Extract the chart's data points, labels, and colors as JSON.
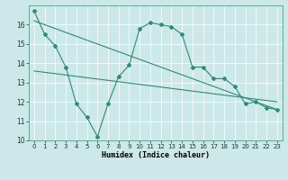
{
  "xlabel": "Humidex (Indice chaleur)",
  "background_color": "#cce8e8",
  "grid_color": "#ffffff",
  "line_color": "#2e8b74",
  "xlim": [
    -0.5,
    23.5
  ],
  "ylim": [
    10,
    17
  ],
  "yticks": [
    10,
    11,
    12,
    13,
    14,
    15,
    16
  ],
  "xticks": [
    0,
    1,
    2,
    3,
    4,
    5,
    6,
    7,
    8,
    9,
    10,
    11,
    12,
    13,
    14,
    15,
    16,
    17,
    18,
    19,
    20,
    21,
    22,
    23
  ],
  "line1_x": [
    0,
    1,
    2,
    3,
    4,
    5,
    6,
    7,
    8,
    9,
    10,
    11,
    12,
    13,
    14,
    15,
    16,
    17,
    18,
    19,
    20,
    21,
    22,
    23
  ],
  "line1_y": [
    16.7,
    15.5,
    14.9,
    13.8,
    11.9,
    11.2,
    10.2,
    11.9,
    13.3,
    13.9,
    15.8,
    16.1,
    16.0,
    15.9,
    15.5,
    13.8,
    13.8,
    13.2,
    13.2,
    12.8,
    11.9,
    12.0,
    11.7,
    11.6
  ],
  "line2_x": [
    0,
    23
  ],
  "line2_y": [
    16.2,
    11.6
  ],
  "line3_x": [
    0,
    23
  ],
  "line3_y": [
    13.6,
    12.0
  ],
  "marker": "D",
  "markersize": 2.0,
  "linewidth": 0.8
}
